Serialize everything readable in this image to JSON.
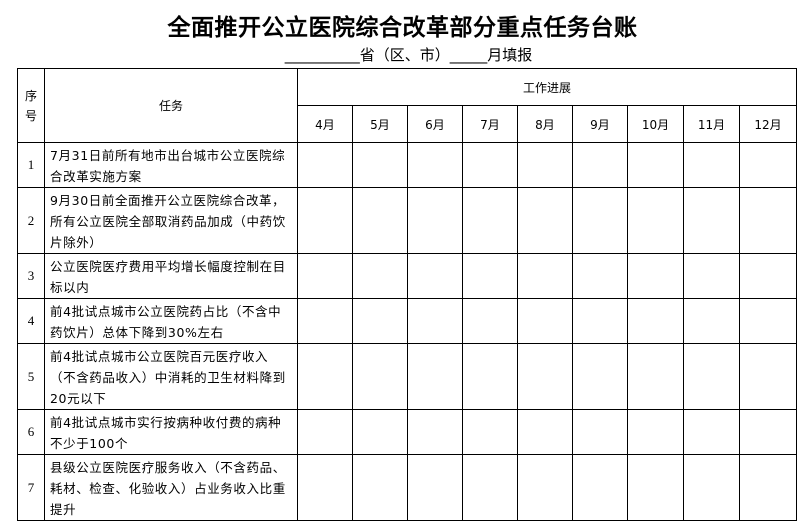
{
  "title": "全面推开公立医院综合改革部分重点任务台账",
  "subtitle": "__________省（区、市）_____月填报",
  "table": {
    "header": {
      "index": "序号",
      "task": "任务",
      "progress": "工作进展",
      "months": [
        "4月",
        "5月",
        "6月",
        "7月",
        "8月",
        "9月",
        "10月",
        "11月",
        "12月"
      ]
    },
    "rows": [
      {
        "index": "1",
        "task": "7月31日前所有地市出台城市公立医院综合改革实施方案"
      },
      {
        "index": "2",
        "task": "9月30日前全面推开公立医院综合改革，所有公立医院全部取消药品加成（中药饮片除外）"
      },
      {
        "index": "3",
        "task": "公立医院医疗费用平均增长幅度控制在目标以内"
      },
      {
        "index": "4",
        "task": "前4批试点城市公立医院药占比（不含中药饮片）总体下降到30%左右"
      },
      {
        "index": "5",
        "task": "前4批试点城市公立医院百元医疗收入（不含药品收入）中消耗的卫生材料降到20元以下"
      },
      {
        "index": "6",
        "task": "前4批试点城市实行按病种收付费的病种不少于100个"
      },
      {
        "index": "7",
        "task": "县级公立医院医疗服务收入（不含药品、耗材、检查、化验收入）占业务收入比重提升"
      }
    ]
  }
}
